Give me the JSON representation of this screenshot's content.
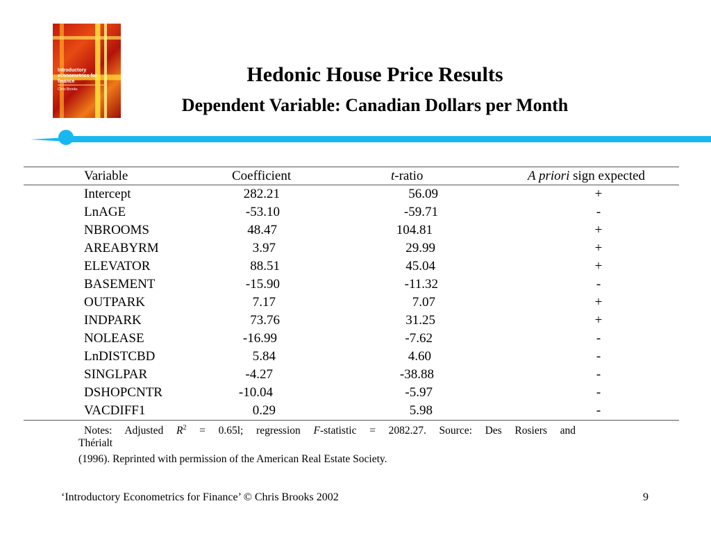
{
  "cover": {
    "title": "Introductory econometrics for finance",
    "author": "Chris Brooks"
  },
  "title": "Hedonic House Price Results",
  "subtitle": "Dependent Variable: Canadian Dollars per Month",
  "accent_color": "#19b7f0",
  "table": {
    "headers": {
      "variable": "Variable",
      "coefficient": "Coefficient",
      "t_ratio_italic": "t",
      "t_ratio_rest": "-ratio",
      "sign_italic": "A priori",
      "sign_rest": " sign expected"
    },
    "rows": [
      {
        "variable": "Intercept",
        "coefficient": "282.21",
        "t_ratio": "56.09",
        "sign": "+"
      },
      {
        "variable": "LnAGE",
        "coefficient": "-53.10",
        "t_ratio": "-59.71",
        "sign": "-"
      },
      {
        "variable": "NBROOMS",
        "coefficient": "48.47",
        "t_ratio": "104.81",
        "sign": "+"
      },
      {
        "variable": "AREABYRM",
        "coefficient": "3.97",
        "t_ratio": "29.99",
        "sign": "+"
      },
      {
        "variable": "ELEVATOR",
        "coefficient": "88.51",
        "t_ratio": "45.04",
        "sign": "+"
      },
      {
        "variable": "BASEMENT",
        "coefficient": "-15.90",
        "t_ratio": "-11.32",
        "sign": "-"
      },
      {
        "variable": "OUTPARK",
        "coefficient": "7.17",
        "t_ratio": "7.07",
        "sign": "+"
      },
      {
        "variable": "INDPARK",
        "coefficient": "73.76",
        "t_ratio": "31.25",
        "sign": "+"
      },
      {
        "variable": "NOLEASE",
        "coefficient": "-16.99",
        "t_ratio": "-7.62",
        "sign": "-"
      },
      {
        "variable": "LnDISTCBD",
        "coefficient": "5.84",
        "t_ratio": "4.60",
        "sign": "-"
      },
      {
        "variable": "SINGLPAR",
        "coefficient": "-4.27",
        "t_ratio": "-38.88",
        "sign": "-"
      },
      {
        "variable": "DSHOPCNTR",
        "coefficient": "-10.04",
        "t_ratio": "-5.97",
        "sign": "-"
      },
      {
        "variable": "VACDIFF1",
        "coefficient": "0.29",
        "t_ratio": "5.98",
        "sign": "-"
      }
    ]
  },
  "notes": {
    "line1_a": "Notes: Adjusted ",
    "line1_r": "R",
    "line1_sup": "2",
    "line1_b": " = 0.65l; regression ",
    "line1_f": "F",
    "line1_c": "-statistic = 2082.27. Source: Des Rosiers and",
    "line2": "Thérialt",
    "line3": "(1996). Reprinted with permission of the American Real Estate Society."
  },
  "footer": {
    "left": "‘Introductory Econometrics for Finance’ © Chris Brooks 2002",
    "page": "9"
  }
}
